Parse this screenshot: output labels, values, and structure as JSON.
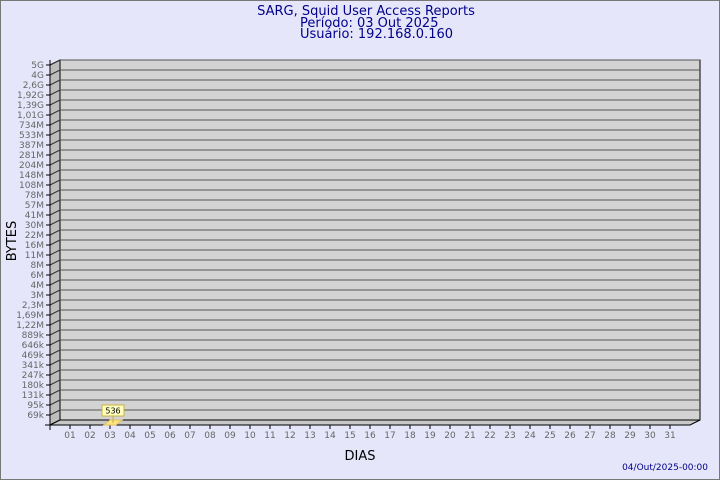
{
  "chart_data": {
    "type": "bar",
    "title": "SARG, Squid User Access Reports",
    "subtitle_period": "Período: 03 Out 2025",
    "subtitle_user": "Usuário: 192.168.0.160",
    "xlabel": "DIAS",
    "ylabel": "BYTES",
    "footer": "04/Out/2025-00:00",
    "y_scale": "log",
    "y_tick_labels": [
      "5G",
      "4G",
      "2,6G",
      "1,92G",
      "1,39G",
      "1,01G",
      "734M",
      "533M",
      "387M",
      "281M",
      "204M",
      "148M",
      "108M",
      "78M",
      "57M",
      "41M",
      "30M",
      "22M",
      "16M",
      "11M",
      "8M",
      "6M",
      "4M",
      "3M",
      "2,3M",
      "1,69M",
      "1,22M",
      "889k",
      "646k",
      "469k",
      "341k",
      "247k",
      "180k",
      "131k",
      "95k",
      "69k"
    ],
    "categories": [
      "01",
      "02",
      "03",
      "04",
      "05",
      "06",
      "07",
      "08",
      "09",
      "10",
      "11",
      "12",
      "13",
      "14",
      "15",
      "16",
      "17",
      "18",
      "19",
      "20",
      "21",
      "22",
      "23",
      "24",
      "25",
      "26",
      "27",
      "28",
      "29",
      "30",
      "31"
    ],
    "values": [
      null,
      null,
      536,
      null,
      null,
      null,
      null,
      null,
      null,
      null,
      null,
      null,
      null,
      null,
      null,
      null,
      null,
      null,
      null,
      null,
      null,
      null,
      null,
      null,
      null,
      null,
      null,
      null,
      null,
      null,
      null
    ],
    "data_labels": [
      {
        "category": "03",
        "text": "536"
      }
    ],
    "grid": true,
    "colors": {
      "background": "#e6e6fa",
      "plot": "#d3d3d3",
      "bar": "#ffe680",
      "label_box": "#ffffc0",
      "title": "#00008b"
    }
  }
}
